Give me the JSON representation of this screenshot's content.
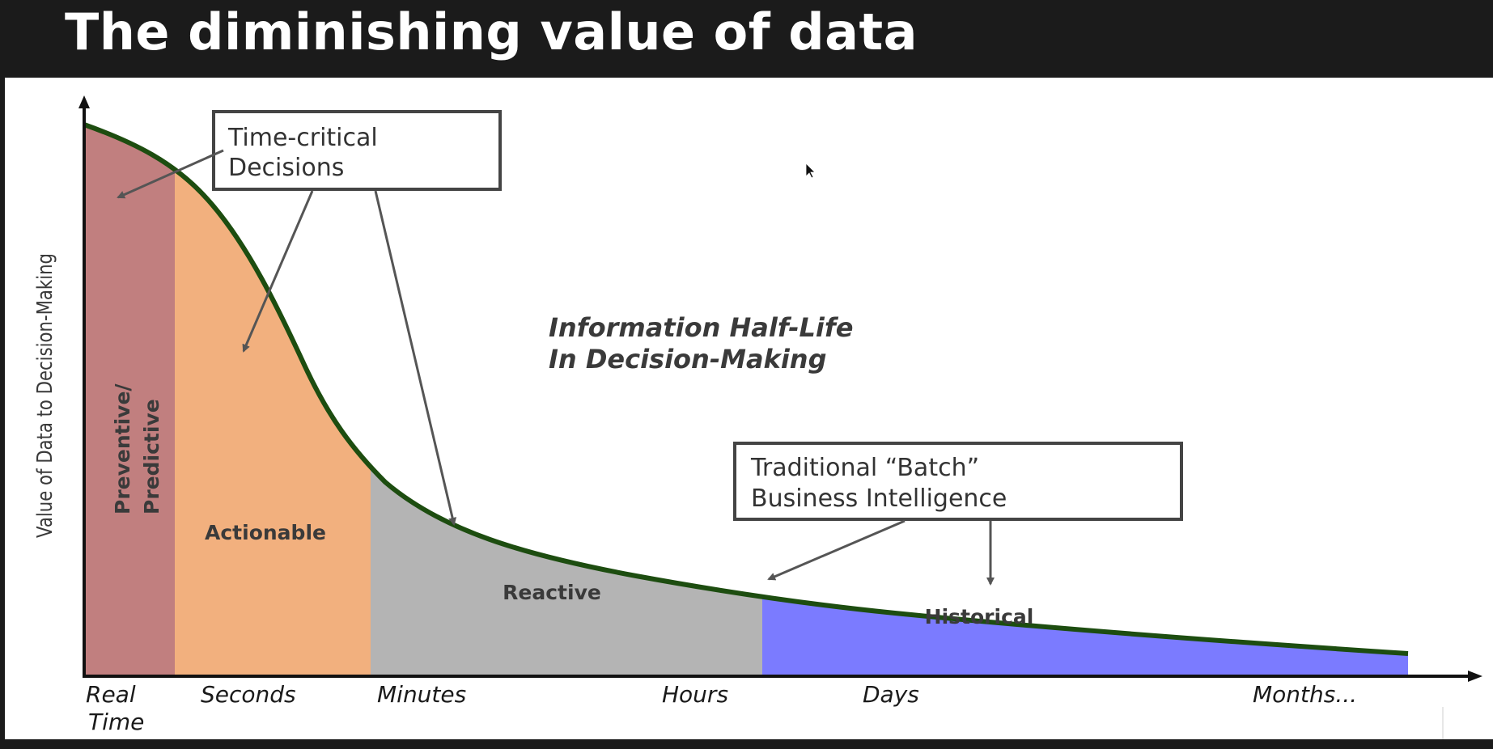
{
  "slide": {
    "title": "The diminishing value of data"
  },
  "diagram": {
    "y_axis_label": "Value of Data to Decision-Making",
    "regions": [
      {
        "lines": [
          "Preventive/",
          "Predictive"
        ],
        "color": "#c17f7f"
      },
      {
        "lines": [
          "Actionable"
        ],
        "color": "#f2b07e"
      },
      {
        "lines": [
          "Reactive"
        ],
        "color": "#b4b4b4"
      },
      {
        "lines": [
          "Historical"
        ],
        "color": "#7b7bff"
      }
    ],
    "x_ticks": [
      {
        "lines": [
          "Real",
          "Time"
        ]
      },
      {
        "lines": [
          "Seconds"
        ]
      },
      {
        "lines": [
          "Minutes"
        ]
      },
      {
        "lines": [
          "Hours"
        ]
      },
      {
        "lines": [
          "Days"
        ]
      },
      {
        "lines": [
          "Months..."
        ]
      }
    ],
    "callout_time_critical": {
      "lines": [
        "Time-critical",
        "Decisions"
      ]
    },
    "callout_batch": {
      "lines": [
        "Traditional “Batch”",
        "Business Intelligence"
      ]
    },
    "info_text": {
      "lines": [
        "Information Half-Life",
        "In Decision-Making"
      ]
    },
    "curve_color": "#1d4d10"
  }
}
